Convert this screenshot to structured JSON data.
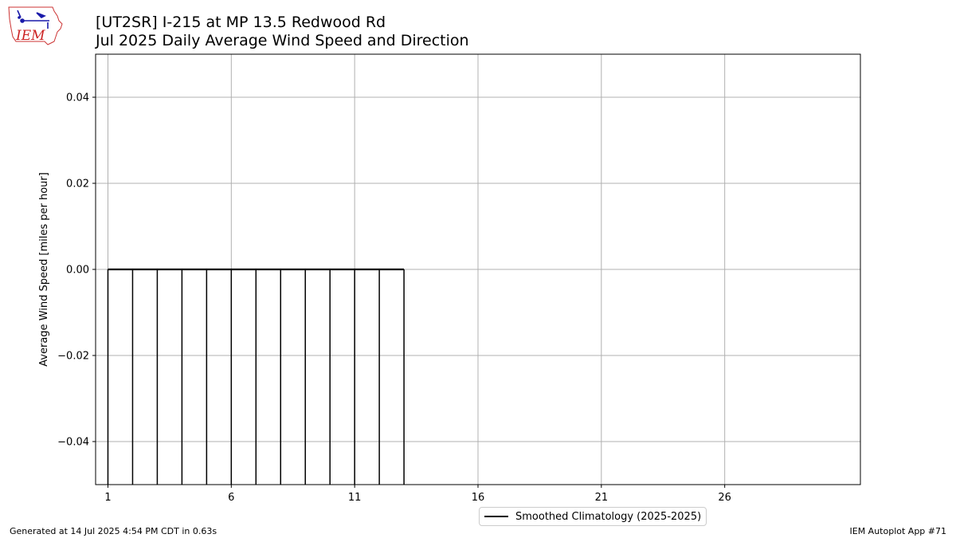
{
  "header": {
    "logo_text": "IEM",
    "title_line1": "[UT2SR] I-215 at MP 13.5 Redwood Rd",
    "title_line2": "Jul 2025 Daily Average Wind Speed and Direction"
  },
  "footer": {
    "left": "Generated at 14 Jul 2025 4:54 PM CDT in 0.63s",
    "right": "IEM Autoplot App #71"
  },
  "colors": {
    "bars": "#000000",
    "climatology": "#000000",
    "grid": "#b0b0b0",
    "logo_outline": "#cc3333",
    "logo_text": "#cc2222",
    "logo_symbol": "#1a1aaa"
  },
  "chart_data": {
    "type": "bar",
    "ylabel": "Average Wind Speed [miles per hour]",
    "xlabel": "",
    "xlim": [
      0.5,
      31.5
    ],
    "ylim": [
      -0.05,
      0.05
    ],
    "xticks": [
      1,
      6,
      11,
      16,
      21,
      26
    ],
    "xtick_labels": [
      "1",
      "6",
      "11",
      "16",
      "21",
      "26"
    ],
    "yticks": [
      -0.04,
      -0.02,
      0.0,
      0.02,
      0.04
    ],
    "ytick_labels": [
      "−0.04",
      "−0.02",
      "0.00",
      "0.02",
      "0.04"
    ],
    "grid": true,
    "legend_placement": "bottom-center",
    "categories": [
      1,
      2,
      3,
      4,
      5,
      6,
      7,
      8,
      9,
      10,
      11,
      12,
      13
    ],
    "series": [
      {
        "name": "",
        "kind": "bar",
        "values": [
          0,
          0,
          0,
          0,
          0,
          0,
          0,
          0,
          0,
          0,
          0,
          0,
          0
        ]
      },
      {
        "name": "Smoothed Climatology (2025-2025)",
        "kind": "line",
        "x": [
          1,
          2,
          3,
          4,
          5,
          6,
          7,
          8,
          9,
          10,
          11,
          12,
          13
        ],
        "values": [
          0,
          0,
          0,
          0,
          0,
          0,
          0,
          0,
          0,
          0,
          0,
          0,
          0
        ]
      }
    ]
  }
}
